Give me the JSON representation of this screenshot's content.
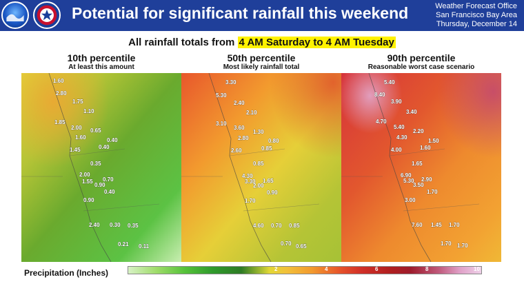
{
  "header": {
    "title": "Potential for significant rainfall this weekend",
    "office": [
      "Weather Forecast Office",
      "San Francisco Bay Area",
      "Thursday, December 14"
    ]
  },
  "subtitle": {
    "prefix": "All rainfall totals from ",
    "highlight": "4 AM Saturday to 4 AM Tuesday"
  },
  "panels": [
    {
      "title": "10th percentile",
      "subtitle": "At least this amount",
      "labels": [
        "1.60",
        "2.80",
        "1.75",
        "1.10",
        "1.85",
        "2.00",
        "0.65",
        "1.60",
        "0.40",
        "0.40",
        "1.45",
        "0.35",
        "2.00",
        "1.55",
        "0.70",
        "0.90",
        "0.40",
        "0.90",
        "2.40",
        "0.30",
        "0.35",
        "0.21",
        "0.11"
      ]
    },
    {
      "title": "50th percentile",
      "subtitle": "Most likely rainfall total",
      "labels": [
        "3.30",
        "5.30",
        "2.40",
        "2.10",
        "3.10",
        "3.60",
        "1.30",
        "2.80",
        "0.80",
        "2.60",
        "0.85",
        "0.85",
        "4.30",
        "3.30",
        "1.65",
        "2.00",
        "0.90",
        "1.70",
        "4.60",
        "0.70",
        "0.85",
        "0.70",
        "0.65"
      ]
    },
    {
      "title": "90th percentile",
      "subtitle": "Reasonable worst case scenario",
      "labels": [
        "5.40",
        "8.40",
        "3.90",
        "3.40",
        "4.70",
        "5.40",
        "2.20",
        "4.30",
        "1.50",
        "4.00",
        "1.60",
        "1.65",
        "6.90",
        "5.30",
        "2.90",
        "3.50",
        "1.70",
        "3.00",
        "7.60",
        "1.45",
        "1.70",
        "1.70",
        "1.70"
      ]
    }
  ],
  "legend": {
    "title": "Precipitation (Inches)",
    "ticks": [
      "2",
      "4",
      "6",
      "8",
      "10"
    ]
  }
}
